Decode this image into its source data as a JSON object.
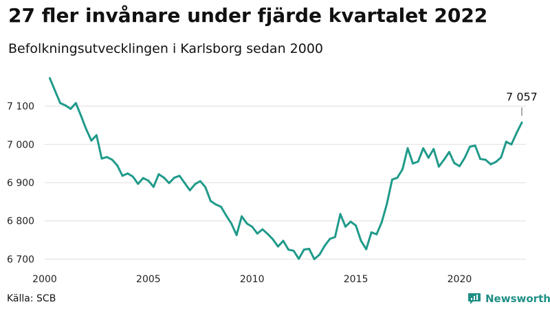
{
  "header": {
    "title": "27 fler invånare under fjärde kvartalet 2022",
    "subtitle": "Befolkningsutvecklingen i Karlsborg sedan 2000"
  },
  "footer": {
    "source": "Källa: SCB",
    "brand": "Newsworthy"
  },
  "colors": {
    "line": "#1f9a8a",
    "grid": "#dddddd",
    "brand": "#1f8f86"
  },
  "chart_data": {
    "type": "line",
    "title": "27 fler invånare under fjärde kvartalet 2022",
    "subtitle": "Befolkningsutvecklingen i Karlsborg sedan 2000",
    "xlabel": "",
    "ylabel": "",
    "xlim": [
      2000,
      2023.2
    ],
    "ylim": [
      6690,
      7180
    ],
    "grid": true,
    "x_ticks": [
      {
        "value": 2000,
        "label": "2000"
      },
      {
        "value": 2005,
        "label": "2005"
      },
      {
        "value": 2010,
        "label": "2010"
      },
      {
        "value": 2015,
        "label": "2015"
      },
      {
        "value": 2020,
        "label": "2020"
      }
    ],
    "y_ticks": [
      {
        "value": 6700,
        "label": "6 700"
      },
      {
        "value": 6800,
        "label": "6 800"
      },
      {
        "value": 6900,
        "label": "6 900"
      },
      {
        "value": 7000,
        "label": "7 000"
      },
      {
        "value": 7100,
        "label": "7 100"
      }
    ],
    "end_label": "7 057",
    "series": [
      {
        "values": [
          [
            2000.25,
            7173
          ],
          [
            2000.5,
            7140
          ],
          [
            2000.75,
            7108
          ],
          [
            2001.0,
            7102
          ],
          [
            2001.25,
            7093
          ],
          [
            2001.5,
            7108
          ],
          [
            2001.75,
            7075
          ],
          [
            2002.0,
            7040
          ],
          [
            2002.25,
            7010
          ],
          [
            2002.5,
            7024
          ],
          [
            2002.75,
            6963
          ],
          [
            2003.0,
            6967
          ],
          [
            2003.25,
            6960
          ],
          [
            2003.5,
            6945
          ],
          [
            2003.75,
            6918
          ],
          [
            2004.0,
            6924
          ],
          [
            2004.25,
            6916
          ],
          [
            2004.5,
            6897
          ],
          [
            2004.75,
            6912
          ],
          [
            2005.0,
            6905
          ],
          [
            2005.25,
            6889
          ],
          [
            2005.5,
            6922
          ],
          [
            2005.75,
            6913
          ],
          [
            2006.0,
            6899
          ],
          [
            2006.25,
            6913
          ],
          [
            2006.5,
            6918
          ],
          [
            2006.75,
            6899
          ],
          [
            2007.0,
            6880
          ],
          [
            2007.25,
            6896
          ],
          [
            2007.5,
            6904
          ],
          [
            2007.75,
            6888
          ],
          [
            2008.0,
            6852
          ],
          [
            2008.25,
            6843
          ],
          [
            2008.5,
            6837
          ],
          [
            2008.75,
            6814
          ],
          [
            2009.0,
            6793
          ],
          [
            2009.25,
            6763
          ],
          [
            2009.5,
            6812
          ],
          [
            2009.75,
            6793
          ],
          [
            2010.0,
            6785
          ],
          [
            2010.25,
            6767
          ],
          [
            2010.5,
            6778
          ],
          [
            2010.75,
            6766
          ],
          [
            2011.0,
            6752
          ],
          [
            2011.25,
            6733
          ],
          [
            2011.5,
            6748
          ],
          [
            2011.75,
            6725
          ],
          [
            2012.0,
            6722
          ],
          [
            2012.25,
            6701
          ],
          [
            2012.5,
            6725
          ],
          [
            2012.75,
            6727
          ],
          [
            2013.0,
            6700
          ],
          [
            2013.25,
            6712
          ],
          [
            2013.5,
            6735
          ],
          [
            2013.75,
            6753
          ],
          [
            2014.0,
            6758
          ],
          [
            2014.25,
            6818
          ],
          [
            2014.5,
            6785
          ],
          [
            2014.75,
            6798
          ],
          [
            2015.0,
            6788
          ],
          [
            2015.25,
            6748
          ],
          [
            2015.5,
            6726
          ],
          [
            2015.75,
            6770
          ],
          [
            2016.0,
            6765
          ],
          [
            2016.25,
            6797
          ],
          [
            2016.5,
            6845
          ],
          [
            2016.75,
            6908
          ],
          [
            2017.0,
            6913
          ],
          [
            2017.25,
            6935
          ],
          [
            2017.5,
            6990
          ],
          [
            2017.75,
            6950
          ],
          [
            2018.0,
            6955
          ],
          [
            2018.25,
            6990
          ],
          [
            2018.5,
            6965
          ],
          [
            2018.75,
            6988
          ],
          [
            2019.0,
            6942
          ],
          [
            2019.25,
            6960
          ],
          [
            2019.5,
            6980
          ],
          [
            2019.75,
            6951
          ],
          [
            2020.0,
            6943
          ],
          [
            2020.25,
            6965
          ],
          [
            2020.5,
            6994
          ],
          [
            2020.75,
            6997
          ],
          [
            2021.0,
            6962
          ],
          [
            2021.25,
            6960
          ],
          [
            2021.5,
            6948
          ],
          [
            2021.75,
            6954
          ],
          [
            2022.0,
            6966
          ],
          [
            2022.25,
            7007
          ],
          [
            2022.5,
            7000
          ],
          [
            2022.75,
            7030
          ],
          [
            2023.0,
            7057
          ]
        ]
      }
    ]
  }
}
